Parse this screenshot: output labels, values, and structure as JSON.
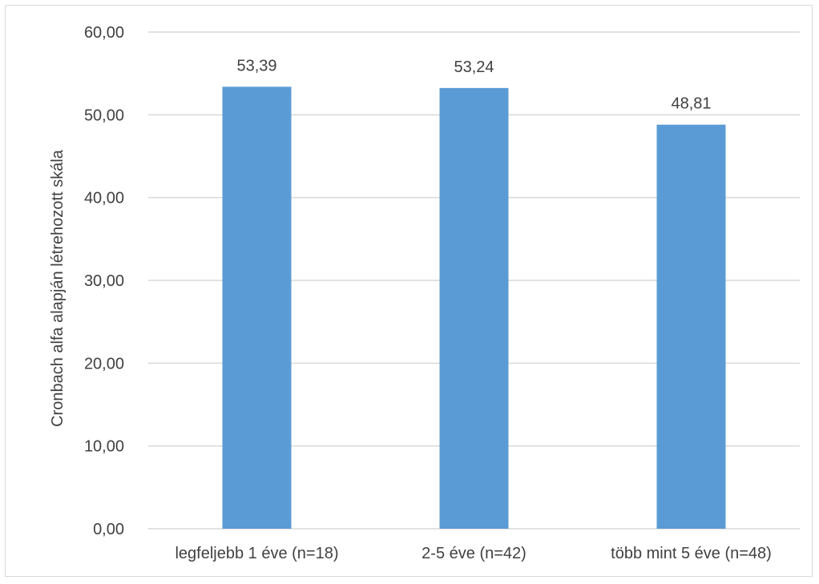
{
  "chart_data": {
    "type": "bar",
    "title": "",
    "xlabel": "",
    "ylabel": "Cronbach alfa  alapján létrehozott skála",
    "categories": [
      "legfeljebb 1 éve (n=18)",
      "2-5 éve (n=42)",
      "több mint 5 éve (n=48)"
    ],
    "values": [
      53.39,
      53.24,
      48.81
    ],
    "value_labels": [
      "53,39",
      "53,24",
      "48,81"
    ],
    "ylim": [
      0,
      60
    ],
    "yticks": [
      0,
      10,
      20,
      30,
      40,
      50,
      60
    ],
    "ytick_labels": [
      "0,00",
      "10,00",
      "20,00",
      "30,00",
      "40,00",
      "50,00",
      "60,00"
    ],
    "grid": true,
    "legend": "none",
    "bar_color": "#5b9bd5",
    "grid_color": "#d9d9d9"
  }
}
